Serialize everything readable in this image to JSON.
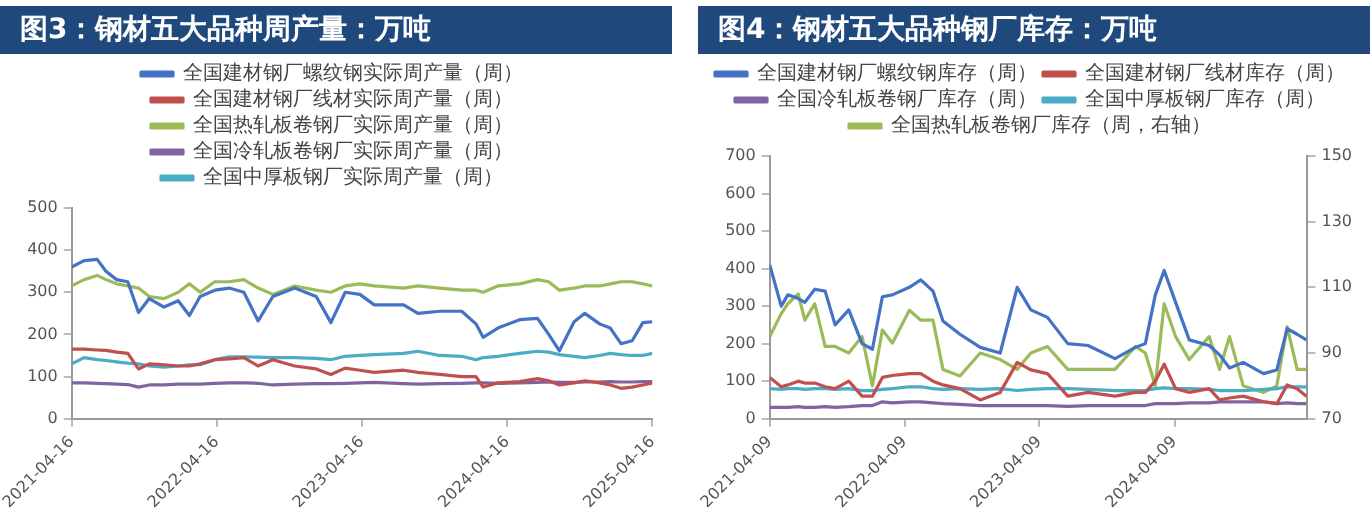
{
  "chart_data": [
    {
      "type": "line",
      "title": "图3：钢材五大品种周产量：万吨",
      "legend": "top",
      "marker": "none",
      "line_style": "solid",
      "grid": false,
      "x": [
        "2021-04-16",
        "2021-05-17",
        "2021-06-19",
        "2021-07-11",
        "2021-08-07",
        "2021-09-04",
        "2021-10-01",
        "2021-10-28",
        "2021-12-04",
        "2022-01-09",
        "2022-02-06",
        "2022-03-05",
        "2022-04-11",
        "2022-05-17",
        "2022-06-23",
        "2022-07-29",
        "2022-09-04",
        "2022-10-29",
        "2022-12-22",
        "2023-01-28",
        "2023-03-05",
        "2023-04-11",
        "2023-05-17",
        "2023-07-30",
        "2023-09-04",
        "2023-10-29",
        "2023-12-23",
        "2024-01-28",
        "2024-02-15",
        "2024-03-23",
        "2024-05-17",
        "2024-07-01",
        "2024-07-29",
        "2024-08-25",
        "2024-10-01",
        "2024-10-28",
        "2024-12-04",
        "2024-12-31",
        "2025-01-27",
        "2025-02-24",
        "2025-03-23",
        "2025-04-16"
      ],
      "xlim": [
        "2021-04-16",
        "2025-04-16"
      ],
      "xticks": [
        "2021-04-16",
        "2022-04-16",
        "2023-04-16",
        "2024-04-16",
        "2025-04-16"
      ],
      "ylim": [
        0,
        500
      ],
      "yticks": [
        0,
        100,
        200,
        300,
        400,
        500
      ],
      "series": [
        {
          "name": "全国建材钢厂螺纹钢实际周产量（周）",
          "color": "#4472c4",
          "values": [
            360,
            375,
            378,
            350,
            330,
            325,
            252,
            285,
            265,
            280,
            245,
            290,
            305,
            310,
            300,
            232,
            290,
            310,
            290,
            228,
            300,
            295,
            270,
            270,
            250,
            255,
            255,
            225,
            193,
            215,
            235,
            238,
            200,
            161,
            230,
            250,
            225,
            215,
            178,
            185,
            228,
            230
          ]
        },
        {
          "name": "全国建材钢厂线材实际周产量（周）",
          "color": "#c0504d",
          "values": [
            165,
            165,
            163,
            162,
            158,
            155,
            118,
            130,
            128,
            125,
            125,
            130,
            140,
            142,
            145,
            125,
            140,
            125,
            118,
            105,
            120,
            115,
            110,
            115,
            110,
            105,
            100,
            100,
            75,
            85,
            88,
            95,
            90,
            80,
            85,
            90,
            85,
            80,
            72,
            75,
            80,
            85
          ]
        },
        {
          "name": "全国热轧板卷钢厂实际周产量（周）",
          "color": "#9bbb59",
          "values": [
            315,
            330,
            340,
            330,
            320,
            315,
            310,
            290,
            285,
            300,
            320,
            300,
            325,
            325,
            330,
            310,
            295,
            315,
            305,
            300,
            315,
            320,
            315,
            310,
            315,
            310,
            305,
            305,
            300,
            315,
            320,
            330,
            325,
            305,
            310,
            315,
            315,
            320,
            325,
            325,
            320,
            315
          ]
        },
        {
          "name": "全国冷轧板卷钢厂实际周产量（周）",
          "color": "#8064a2",
          "values": [
            85,
            85,
            84,
            83,
            82,
            81,
            75,
            80,
            80,
            82,
            82,
            82,
            84,
            85,
            85,
            84,
            80,
            82,
            83,
            83,
            84,
            85,
            86,
            83,
            82,
            83,
            84,
            85,
            85,
            84,
            85,
            86,
            87,
            86,
            86,
            87,
            87,
            88,
            87,
            87,
            88,
            88
          ]
        },
        {
          "name": "全国中厚板钢厂实际周产量（周）",
          "color": "#4bacc6",
          "values": [
            130,
            145,
            140,
            138,
            135,
            132,
            130,
            125,
            122,
            125,
            128,
            128,
            140,
            147,
            147,
            146,
            145,
            145,
            143,
            140,
            148,
            150,
            152,
            155,
            160,
            150,
            148,
            140,
            145,
            148,
            155,
            160,
            158,
            152,
            148,
            145,
            150,
            155,
            152,
            150,
            150,
            155
          ]
        }
      ]
    },
    {
      "type": "line",
      "title": "图4：钢材五大品种钢厂库存：万吨",
      "legend": "top",
      "marker": "none",
      "line_style": "solid",
      "grid": false,
      "x": [
        "2021-04-09",
        "2021-05-10",
        "2021-05-28",
        "2021-06-25",
        "2021-07-13",
        "2021-08-09",
        "2021-09-06",
        "2021-10-03",
        "2021-11-09",
        "2021-12-15",
        "2022-01-12",
        "2022-02-08",
        "2022-03-07",
        "2022-04-22",
        "2022-05-23",
        "2022-06-25",
        "2022-07-22",
        "2022-09-06",
        "2022-10-31",
        "2022-12-24",
        "2023-02-08",
        "2023-03-17",
        "2023-05-01",
        "2023-06-25",
        "2023-08-19",
        "2023-10-31",
        "2023-12-25",
        "2024-01-21",
        "2024-02-17",
        "2024-03-12",
        "2024-04-12",
        "2024-05-19",
        "2024-07-12",
        "2024-08-09",
        "2024-09-05",
        "2024-10-12",
        "2024-12-06",
        "2025-01-11",
        "2025-02-08",
        "2025-03-07",
        "2025-04-01"
      ],
      "xlim": [
        "2021-04-09",
        "2025-04-04"
      ],
      "xticks": [
        "2021-04-09",
        "2022-04-09",
        "2023-04-09",
        "2024-04-09"
      ],
      "ylim": [
        0,
        700
      ],
      "yticks": [
        0,
        100,
        200,
        300,
        400,
        500,
        600,
        700
      ],
      "y2lim": [
        70,
        150
      ],
      "y2ticks": [
        70,
        90,
        110,
        130,
        150
      ],
      "series": [
        {
          "name": "全国建材钢厂螺纹钢库存（周）",
          "color": "#4472c4",
          "values": [
            410,
            300,
            330,
            320,
            310,
            345,
            340,
            250,
            290,
            200,
            185,
            325,
            330,
            350,
            370,
            340,
            260,
            225,
            190,
            175,
            350,
            290,
            270,
            200,
            195,
            160,
            190,
            200,
            330,
            395,
            310,
            210,
            195,
            170,
            135,
            150,
            120,
            130,
            240,
            225,
            210
          ]
        },
        {
          "name": "全国建材钢厂线材库存（周）",
          "color": "#c0504d",
          "values": [
            110,
            85,
            90,
            100,
            95,
            95,
            85,
            80,
            100,
            60,
            60,
            110,
            115,
            120,
            120,
            100,
            90,
            80,
            50,
            70,
            150,
            130,
            120,
            60,
            70,
            60,
            70,
            70,
            100,
            145,
            80,
            70,
            80,
            50,
            55,
            60,
            45,
            40,
            90,
            80,
            60
          ]
        },
        {
          "name": "全国冷轧板卷钢厂库存（周）",
          "color": "#8064a2",
          "values": [
            30,
            30,
            30,
            32,
            30,
            30,
            32,
            30,
            32,
            35,
            35,
            45,
            42,
            45,
            45,
            42,
            40,
            38,
            35,
            35,
            35,
            35,
            35,
            33,
            35,
            35,
            35,
            35,
            40,
            40,
            40,
            42,
            42,
            45,
            45,
            45,
            45,
            40,
            42,
            40,
            40
          ]
        },
        {
          "name": "全国中厚板钢厂库存（周）",
          "color": "#4bacc6",
          "values": [
            80,
            78,
            80,
            80,
            78,
            80,
            80,
            78,
            80,
            75,
            75,
            78,
            80,
            85,
            85,
            80,
            78,
            80,
            78,
            80,
            75,
            78,
            80,
            80,
            78,
            75,
            75,
            75,
            80,
            82,
            80,
            80,
            78,
            75,
            75,
            75,
            78,
            80,
            85,
            85,
            85
          ]
        },
        {
          "name": "全国热轧板卷钢厂库存（周，右轴）",
          "color": "#9bbb59",
          "axis": "y2",
          "values": [
            95,
            102,
            105,
            108,
            100,
            105,
            92,
            92,
            90,
            95,
            80,
            97,
            93,
            103,
            100,
            100,
            85,
            83,
            90,
            88,
            85,
            90,
            92,
            85,
            85,
            85,
            92,
            90,
            80,
            105,
            95,
            88,
            95,
            85,
            95,
            80,
            78,
            80,
            98,
            85,
            85
          ]
        }
      ]
    }
  ]
}
